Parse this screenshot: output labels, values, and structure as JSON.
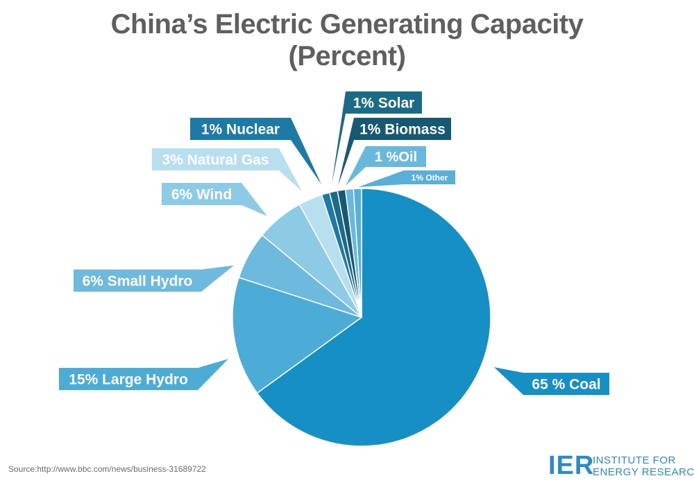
{
  "title_line1": "China’s Electric Generating Capacity",
  "title_line2": "(Percent)",
  "source": "Source:http://www.bbc.com/news/business-31689722",
  "logo": {
    "mark": "IER",
    "line1": "INSTITUTE FOR",
    "line2": "ENERGY RESEARCH"
  },
  "colors": {
    "title": "#5f5f5f",
    "coal": "#1690c4",
    "large_hydro": "#4dacd6",
    "small_hydro": "#6ebadf",
    "wind": "#8ccae6",
    "natural_gas": "#b8dff0",
    "nuclear": "#1d7aa6",
    "solar": "#1c6b86",
    "biomass": "#155a72",
    "oil": "#69b8de",
    "other": "#5aafd9"
  },
  "chart_data": {
    "type": "pie",
    "title": "China’s Electric Generating Capacity (Percent)",
    "start": "12 o'clock, clockwise",
    "slices": [
      {
        "name": "Coal",
        "value": 65,
        "label": "65 % Coal",
        "color": "#1690c4"
      },
      {
        "name": "Large Hydro",
        "value": 15,
        "label": "15% Large Hydro",
        "color": "#4dacd6"
      },
      {
        "name": "Small Hydro",
        "value": 6,
        "label": "6% Small Hydro",
        "color": "#6ebadf"
      },
      {
        "name": "Wind",
        "value": 6,
        "label": "6% Wind",
        "color": "#8ccae6"
      },
      {
        "name": "Natural Gas",
        "value": 3,
        "label": "3% Natural Gas",
        "color": "#b8dff0"
      },
      {
        "name": "Nuclear",
        "value": 1,
        "label": "1% Nuclear",
        "color": "#1d7aa6"
      },
      {
        "name": "Solar",
        "value": 1,
        "label": "1% Solar",
        "color": "#1c6b86"
      },
      {
        "name": "Biomass",
        "value": 1,
        "label": "1% Biomass",
        "color": "#155a72"
      },
      {
        "name": "Oil",
        "value": 1,
        "label": "1 %Oil",
        "color": "#69b8de"
      },
      {
        "name": "Other",
        "value": 1,
        "label": "1% Other",
        "color": "#5aafd9"
      }
    ]
  }
}
